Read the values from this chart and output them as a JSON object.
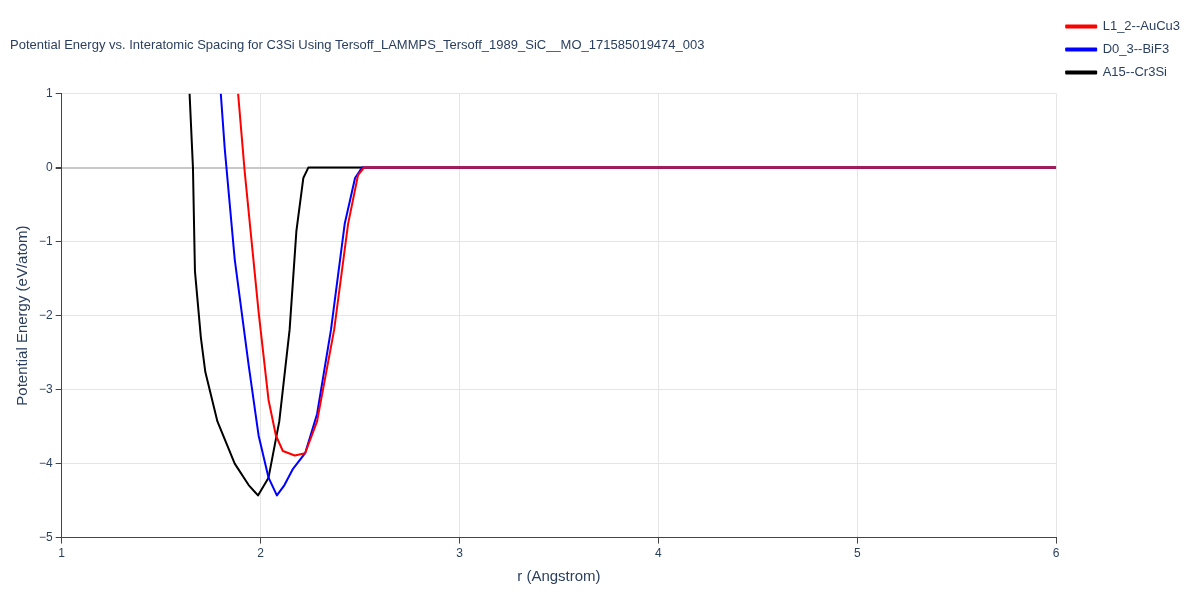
{
  "chart_data": {
    "type": "line",
    "title": "Potential Energy vs. Interatomic Spacing for C3Si Using Tersoff_LAMMPS_Tersoff_1989_SiC__MO_171585019474_003",
    "xlabel": "r (Angstrom)",
    "ylabel": "Potential Energy (eV/atom)",
    "xlim": [
      1,
      6
    ],
    "ylim": [
      -5,
      1
    ],
    "xticks": [
      1,
      2,
      3,
      4,
      5,
      6
    ],
    "yticks": [
      {
        "value": -5,
        "label": "−5"
      },
      {
        "value": -4,
        "label": "−4"
      },
      {
        "value": -3,
        "label": "−3"
      },
      {
        "value": -2,
        "label": "−2"
      },
      {
        "value": -1,
        "label": "−1"
      },
      0,
      1
    ],
    "grid": true,
    "legend": "top right",
    "marker": "none",
    "line_style": "solid",
    "series": [
      {
        "name": "A15--Cr3Si",
        "color": "#000000",
        "x": [
          1.643,
          1.66,
          1.67,
          1.7,
          1.722,
          1.783,
          1.87,
          1.94,
          1.987,
          2.04,
          2.094,
          2.146,
          2.18,
          2.215,
          2.24,
          6
        ],
        "values": [
          1,
          0,
          -1.4,
          -2.3,
          -2.76,
          -3.43,
          -4.0,
          -4.29,
          -4.43,
          -4.19,
          -3.43,
          -2.19,
          -0.86,
          -0.14,
          0,
          0
        ]
      },
      {
        "name": "D0_3--BiF3",
        "color": "#0000ff",
        "x": [
          1.8,
          1.82,
          1.87,
          1.94,
          1.99,
          2.04,
          2.082,
          2.12,
          2.163,
          2.224,
          2.284,
          2.354,
          2.423,
          2.475,
          2.51,
          6
        ],
        "values": [
          1,
          0.25,
          -1.24,
          -2.67,
          -3.62,
          -4.19,
          -4.43,
          -4.29,
          -4.07,
          -3.86,
          -3.33,
          -2.19,
          -0.76,
          -0.14,
          0,
          0
        ]
      },
      {
        "name": "L1_2--AuCu3",
        "color": "#ff0000",
        "x": [
          1.887,
          1.92,
          1.99,
          2.04,
          2.077,
          2.112,
          2.172,
          2.224,
          2.284,
          2.37,
          2.44,
          2.49,
          2.52,
          6
        ],
        "values": [
          1,
          -0.05,
          -1.95,
          -3.14,
          -3.62,
          -3.83,
          -3.89,
          -3.86,
          -3.43,
          -2.19,
          -0.76,
          -0.1,
          0,
          0
        ]
      }
    ]
  }
}
